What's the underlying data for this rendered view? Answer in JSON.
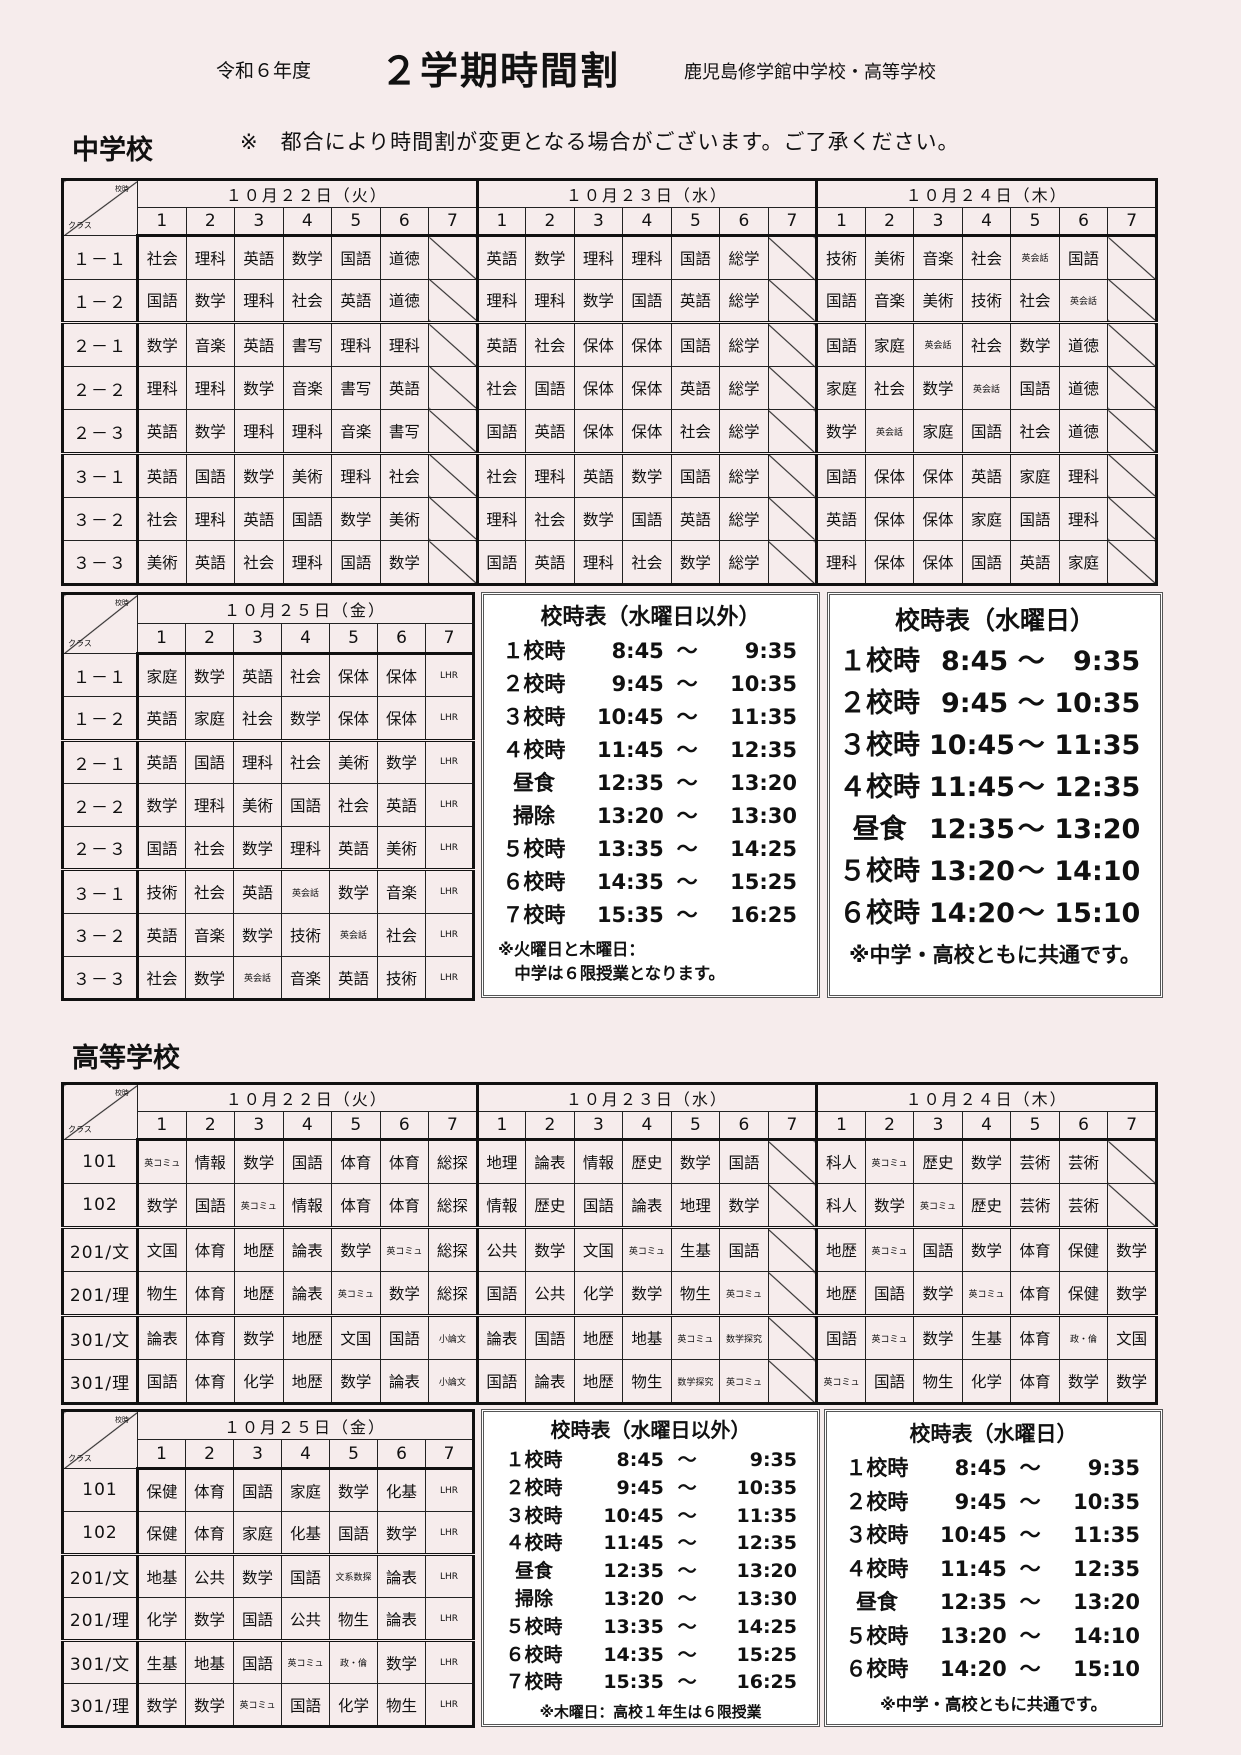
{
  "header": {
    "year": "令和６年度",
    "title": "２学期時間割",
    "school": "鹿児島修学館中学校・高等学校"
  },
  "notice": "※　都合により時間割が変更となる場合がございます。ご了承ください。",
  "corner": {
    "top": "校時",
    "bottom": "クラス"
  },
  "junior": {
    "heading": "中学校",
    "main_table": {
      "days": [
        {
          "label": "１０月２２日（火）",
          "periods": [
            "1",
            "2",
            "3",
            "4",
            "5",
            "6",
            "7"
          ]
        },
        {
          "label": "１０月２３日（水）",
          "periods": [
            "1",
            "2",
            "3",
            "4",
            "5",
            "6",
            "7"
          ]
        },
        {
          "label": "１０月２４日（木）",
          "periods": [
            "1",
            "2",
            "3",
            "4",
            "5",
            "6",
            "7"
          ]
        }
      ],
      "rows": [
        {
          "class": "１－１",
          "cells": [
            [
              "社会",
              "理科",
              "英語",
              "数学",
              "国語",
              "道徳",
              ""
            ],
            [
              "英語",
              "数学",
              "理科",
              "理科",
              "国語",
              "総学",
              ""
            ],
            [
              "技術",
              "美術",
              "音楽",
              "社会",
              "英会話",
              "国語",
              ""
            ]
          ]
        },
        {
          "class": "１－２",
          "cells": [
            [
              "国語",
              "数学",
              "理科",
              "社会",
              "英語",
              "道徳",
              ""
            ],
            [
              "理科",
              "理科",
              "数学",
              "国語",
              "英語",
              "総学",
              ""
            ],
            [
              "国語",
              "音楽",
              "美術",
              "技術",
              "社会",
              "英会話",
              ""
            ]
          ]
        },
        {
          "class": "２－１",
          "cells": [
            [
              "数学",
              "音楽",
              "英語",
              "書写",
              "理科",
              "理科",
              ""
            ],
            [
              "英語",
              "社会",
              "保体",
              "保体",
              "国語",
              "総学",
              ""
            ],
            [
              "国語",
              "家庭",
              "英会話",
              "社会",
              "数学",
              "道徳",
              ""
            ]
          ]
        },
        {
          "class": "２－２",
          "cells": [
            [
              "理科",
              "理科",
              "数学",
              "音楽",
              "書写",
              "英語",
              ""
            ],
            [
              "社会",
              "国語",
              "保体",
              "保体",
              "英語",
              "総学",
              ""
            ],
            [
              "家庭",
              "社会",
              "数学",
              "英会話",
              "国語",
              "道徳",
              ""
            ]
          ]
        },
        {
          "class": "２－３",
          "cells": [
            [
              "英語",
              "数学",
              "理科",
              "理科",
              "音楽",
              "書写",
              ""
            ],
            [
              "国語",
              "英語",
              "保体",
              "保体",
              "社会",
              "総学",
              ""
            ],
            [
              "数学",
              "英会話",
              "家庭",
              "国語",
              "社会",
              "道徳",
              ""
            ]
          ]
        },
        {
          "class": "３－１",
          "cells": [
            [
              "英語",
              "国語",
              "数学",
              "美術",
              "理科",
              "社会",
              ""
            ],
            [
              "社会",
              "理科",
              "英語",
              "数学",
              "国語",
              "総学",
              ""
            ],
            [
              "国語",
              "保体",
              "保体",
              "英語",
              "家庭",
              "理科",
              ""
            ]
          ]
        },
        {
          "class": "３－２",
          "cells": [
            [
              "社会",
              "理科",
              "英語",
              "国語",
              "数学",
              "美術",
              ""
            ],
            [
              "理科",
              "社会",
              "数学",
              "国語",
              "英語",
              "総学",
              ""
            ],
            [
              "英語",
              "保体",
              "保体",
              "家庭",
              "国語",
              "理科",
              ""
            ]
          ]
        },
        {
          "class": "３－３",
          "cells": [
            [
              "美術",
              "英語",
              "社会",
              "理科",
              "国語",
              "数学",
              ""
            ],
            [
              "国語",
              "英語",
              "理科",
              "社会",
              "数学",
              "総学",
              ""
            ],
            [
              "理科",
              "保体",
              "保体",
              "国語",
              "英語",
              "家庭",
              ""
            ]
          ]
        }
      ]
    },
    "fri_table": {
      "days": [
        {
          "label": "１０月２５日（金）",
          "periods": [
            "1",
            "2",
            "3",
            "4",
            "5",
            "6",
            "7"
          ]
        }
      ],
      "rows": [
        {
          "class": "１－１",
          "cells": [
            [
              "家庭",
              "数学",
              "英語",
              "社会",
              "保体",
              "保体",
              "LHR"
            ]
          ]
        },
        {
          "class": "１－２",
          "cells": [
            [
              "英語",
              "家庭",
              "社会",
              "数学",
              "保体",
              "保体",
              "LHR"
            ]
          ]
        },
        {
          "class": "２－１",
          "cells": [
            [
              "英語",
              "国語",
              "理科",
              "社会",
              "美術",
              "数学",
              "LHR"
            ]
          ]
        },
        {
          "class": "２－２",
          "cells": [
            [
              "数学",
              "理科",
              "美術",
              "国語",
              "社会",
              "英語",
              "LHR"
            ]
          ]
        },
        {
          "class": "２－３",
          "cells": [
            [
              "国語",
              "社会",
              "数学",
              "理科",
              "英語",
              "美術",
              "LHR"
            ]
          ]
        },
        {
          "class": "３－１",
          "cells": [
            [
              "技術",
              "社会",
              "英語",
              "英会話",
              "数学",
              "音楽",
              "LHR"
            ]
          ]
        },
        {
          "class": "３－２",
          "cells": [
            [
              "英語",
              "音楽",
              "数学",
              "技術",
              "英会話",
              "社会",
              "LHR"
            ]
          ]
        },
        {
          "class": "３－３",
          "cells": [
            [
              "社会",
              "数学",
              "英会話",
              "音楽",
              "英語",
              "技術",
              "LHR"
            ]
          ]
        }
      ]
    },
    "schedule_regular": {
      "title": "校時表（水曜日以外）",
      "sep": "～",
      "rows": [
        {
          "label": "１校時",
          "start": "8:45",
          "end": "9:35"
        },
        {
          "label": "２校時",
          "start": "9:45",
          "end": "10:35"
        },
        {
          "label": "３校時",
          "start": "10:45",
          "end": "11:35"
        },
        {
          "label": "４校時",
          "start": "11:45",
          "end": "12:35"
        },
        {
          "label": "昼食",
          "start": "12:35",
          "end": "13:20"
        },
        {
          "label": "掃除",
          "start": "13:20",
          "end": "13:30"
        },
        {
          "label": "５校時",
          "start": "13:35",
          "end": "14:25"
        },
        {
          "label": "６校時",
          "start": "14:35",
          "end": "15:25"
        },
        {
          "label": "７校時",
          "start": "15:35",
          "end": "16:25"
        }
      ],
      "notes": [
        "※火曜日と木曜日：",
        "　中学は６限授業となります。"
      ]
    },
    "schedule_wed": {
      "title": "校時表（水曜日）",
      "sep": "～",
      "rows": [
        {
          "label": "１校時",
          "start": "8:45",
          "end": "9:35"
        },
        {
          "label": "２校時",
          "start": "9:45",
          "end": "10:35"
        },
        {
          "label": "３校時",
          "start": "10:45",
          "end": "11:35"
        },
        {
          "label": "４校時",
          "start": "11:45",
          "end": "12:35"
        },
        {
          "label": "昼食",
          "start": "12:35",
          "end": "13:20"
        },
        {
          "label": "５校時",
          "start": "13:20",
          "end": "14:10"
        },
        {
          "label": "６校時",
          "start": "14:20",
          "end": "15:10"
        }
      ],
      "notes": [
        "※中学・高校ともに共通です。"
      ]
    }
  },
  "high": {
    "heading": "高等学校",
    "main_table": {
      "days": [
        {
          "label": "１０月２２日（火）",
          "periods": [
            "1",
            "2",
            "3",
            "4",
            "5",
            "6",
            "7"
          ]
        },
        {
          "label": "１０月２３日（水）",
          "periods": [
            "1",
            "2",
            "3",
            "4",
            "5",
            "6",
            "7"
          ]
        },
        {
          "label": "１０月２４日（木）",
          "periods": [
            "1",
            "2",
            "3",
            "4",
            "5",
            "6",
            "7"
          ]
        }
      ],
      "rows": [
        {
          "class": "101",
          "cells": [
            [
              "英コミュ",
              "情報",
              "数学",
              "国語",
              "体育",
              "体育",
              "総探"
            ],
            [
              "地理",
              "論表",
              "情報",
              "歴史",
              "数学",
              "国語",
              ""
            ],
            [
              "科人",
              "英コミュ",
              "歴史",
              "数学",
              "芸術",
              "芸術",
              ""
            ]
          ]
        },
        {
          "class": "102",
          "cells": [
            [
              "数学",
              "国語",
              "英コミュ",
              "情報",
              "体育",
              "体育",
              "総探"
            ],
            [
              "情報",
              "歴史",
              "国語",
              "論表",
              "地理",
              "数学",
              ""
            ],
            [
              "科人",
              "数学",
              "英コミュ",
              "歴史",
              "芸術",
              "芸術",
              ""
            ]
          ]
        },
        {
          "class": "201/文",
          "cells": [
            [
              "文国",
              "体育",
              "地歴",
              "論表",
              "数学",
              "英コミュ",
              "総探"
            ],
            [
              "公共",
              "数学",
              "文国",
              "英コミュ",
              "生基",
              "国語",
              ""
            ],
            [
              "地歴",
              "英コミュ",
              "国語",
              "数学",
              "体育",
              "保健",
              "数学"
            ]
          ]
        },
        {
          "class": "201/理",
          "cells": [
            [
              "物生",
              "体育",
              "地歴",
              "論表",
              "英コミュ",
              "数学",
              "総探"
            ],
            [
              "国語",
              "公共",
              "化学",
              "数学",
              "物生",
              "英コミュ",
              ""
            ],
            [
              "地歴",
              "国語",
              "数学",
              "英コミュ",
              "体育",
              "保健",
              "数学"
            ]
          ]
        },
        {
          "class": "301/文",
          "cells": [
            [
              "論表",
              "体育",
              "数学",
              "地歴",
              "文国",
              "国語",
              "小論文"
            ],
            [
              "論表",
              "国語",
              "地歴",
              "地基",
              "英コミュ",
              "数学探究",
              ""
            ],
            [
              "国語",
              "英コミュ",
              "数学",
              "生基",
              "体育",
              "政・倫",
              "文国"
            ]
          ]
        },
        {
          "class": "301/理",
          "cells": [
            [
              "国語",
              "体育",
              "化学",
              "地歴",
              "数学",
              "論表",
              "小論文"
            ],
            [
              "国語",
              "論表",
              "地歴",
              "物生",
              "数学探究",
              "英コミュ",
              ""
            ],
            [
              "英コミュ",
              "国語",
              "物生",
              "化学",
              "体育",
              "数学",
              "数学"
            ]
          ]
        }
      ]
    },
    "fri_table": {
      "days": [
        {
          "label": "１０月２５日（金）",
          "periods": [
            "1",
            "2",
            "3",
            "4",
            "5",
            "6",
            "7"
          ]
        }
      ],
      "rows": [
        {
          "class": "101",
          "cells": [
            [
              "保健",
              "体育",
              "国語",
              "家庭",
              "数学",
              "化基",
              "LHR"
            ]
          ]
        },
        {
          "class": "102",
          "cells": [
            [
              "保健",
              "体育",
              "家庭",
              "化基",
              "国語",
              "数学",
              "LHR"
            ]
          ]
        },
        {
          "class": "201/文",
          "cells": [
            [
              "地基",
              "公共",
              "数学",
              "国語",
              "文系数探",
              "論表",
              "LHR"
            ]
          ]
        },
        {
          "class": "201/理",
          "cells": [
            [
              "化学",
              "数学",
              "国語",
              "公共",
              "物生",
              "論表",
              "LHR"
            ]
          ]
        },
        {
          "class": "301/文",
          "cells": [
            [
              "生基",
              "地基",
              "国語",
              "英コミュ",
              "政・倫",
              "数学",
              "LHR"
            ]
          ]
        },
        {
          "class": "301/理",
          "cells": [
            [
              "数学",
              "数学",
              "英コミュ",
              "国語",
              "化学",
              "物生",
              "LHR"
            ]
          ]
        }
      ]
    },
    "schedule_regular": {
      "title": "校時表（水曜日以外）",
      "sep": "～",
      "rows": [
        {
          "label": "１校時",
          "start": "8:45",
          "end": "9:35"
        },
        {
          "label": "２校時",
          "start": "9:45",
          "end": "10:35"
        },
        {
          "label": "３校時",
          "start": "10:45",
          "end": "11:35"
        },
        {
          "label": "４校時",
          "start": "11:45",
          "end": "12:35"
        },
        {
          "label": "昼食",
          "start": "12:35",
          "end": "13:20"
        },
        {
          "label": "掃除",
          "start": "13:20",
          "end": "13:30"
        },
        {
          "label": "５校時",
          "start": "13:35",
          "end": "14:25"
        },
        {
          "label": "６校時",
          "start": "14:35",
          "end": "15:25"
        },
        {
          "label": "７校時",
          "start": "15:35",
          "end": "16:25"
        }
      ],
      "notes": [
        "※木曜日：高校１年生は６限授業"
      ]
    },
    "schedule_wed": {
      "title": "校時表（水曜日）",
      "sep": "～",
      "rows": [
        {
          "label": "１校時",
          "start": "8:45",
          "end": "9:35"
        },
        {
          "label": "２校時",
          "start": "9:45",
          "end": "10:35"
        },
        {
          "label": "３校時",
          "start": "10:45",
          "end": "11:35"
        },
        {
          "label": "４校時",
          "start": "11:45",
          "end": "12:35"
        },
        {
          "label": "昼食",
          "start": "12:35",
          "end": "13:20"
        },
        {
          "label": "５校時",
          "start": "13:20",
          "end": "14:10"
        },
        {
          "label": "６校時",
          "start": "14:20",
          "end": "15:10"
        }
      ],
      "notes": [
        "※中学・高校ともに共通です。"
      ]
    }
  }
}
